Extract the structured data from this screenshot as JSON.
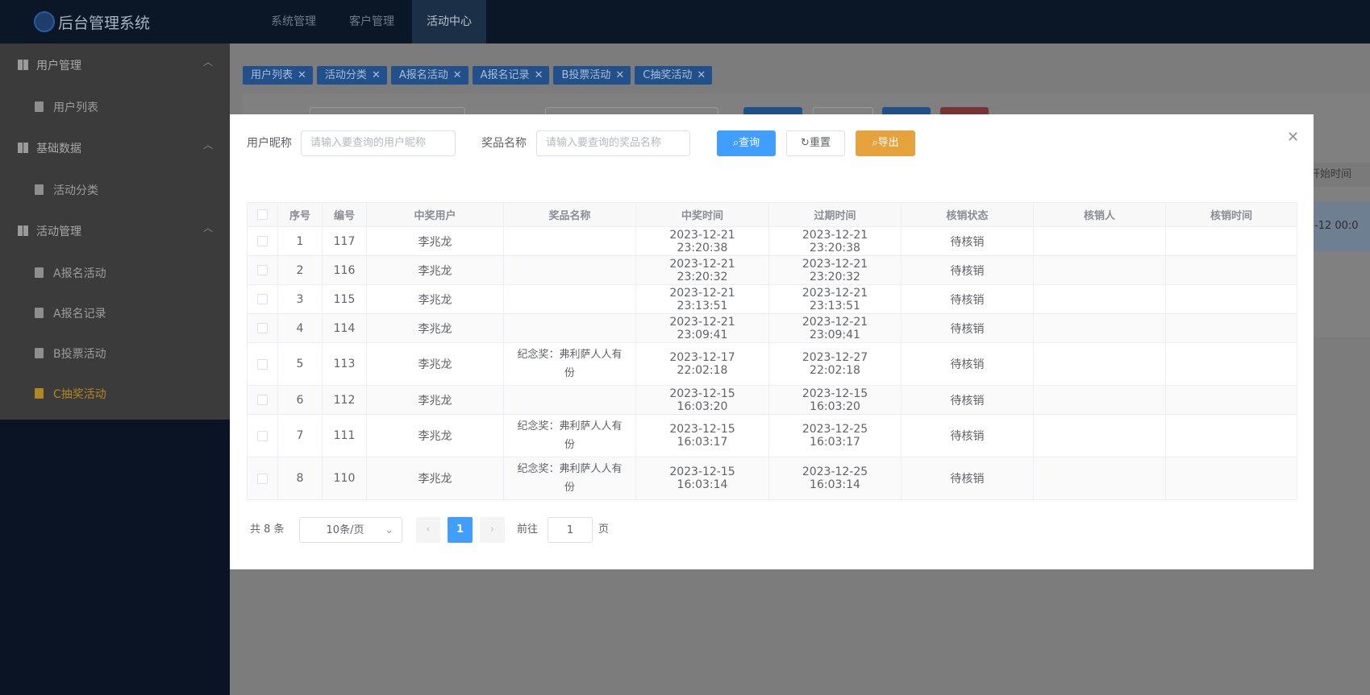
{
  "header": {
    "title": "后台管理系统",
    "nav": [
      "系统管理",
      "客户管理",
      "活动中心"
    ],
    "active_nav": 2
  },
  "sidebar": [
    {
      "label": "用户管理",
      "items": [
        "用户列表"
      ]
    },
    {
      "label": "基础数据",
      "items": [
        "活动分类"
      ]
    },
    {
      "label": "活动管理",
      "items": [
        "A报名活动",
        "A报名记录",
        "B投票活动",
        "C抽奖活动"
      ]
    }
  ],
  "active_menu": [
    2,
    3
  ],
  "tabs": [
    "用户列表",
    "活动分类",
    "A报名活动",
    "A报名记录",
    "B投票活动",
    "C抽奖活动"
  ],
  "background_table": {
    "header": "开始时间",
    "cell": "-12 00:0"
  },
  "dialog": {
    "filters": [
      {
        "label": "用户昵称",
        "placeholder": "请输入要查询的用户昵称"
      },
      {
        "label": "奖品名称",
        "placeholder": "请输入要查询的奖品名称"
      }
    ],
    "buttons": [
      "查询",
      "重置",
      "导出"
    ],
    "columns": [
      "序号",
      "编号",
      "中奖用户",
      "奖品名称",
      "中奖时间",
      "过期时间",
      "核销状态",
      "核销人",
      "核销时间"
    ],
    "rows": [
      [
        1,
        117,
        "李兆龙",
        null,
        "2023-12-21 23:20:38",
        "2023-12-21 23:20:38",
        "待核销",
        null,
        null
      ],
      [
        2,
        116,
        "李兆龙",
        null,
        "2023-12-21 23:20:32",
        "2023-12-21 23:20:32",
        "待核销",
        null,
        null
      ],
      [
        3,
        115,
        "李兆龙",
        null,
        "2023-12-21 23:13:51",
        "2023-12-21 23:13:51",
        "待核销",
        null,
        null
      ],
      [
        4,
        114,
        "李兆龙",
        null,
        "2023-12-21 23:09:41",
        "2023-12-21 23:09:41",
        "待核销",
        null,
        null
      ],
      [
        5,
        113,
        "李兆龙",
        "纪念奖：弗利萨人人有份",
        "2023-12-17 22:02:18",
        "2023-12-27 22:02:18",
        "待核销",
        null,
        null
      ],
      [
        6,
        112,
        "李兆龙",
        null,
        "2023-12-15 16:03:20",
        "2023-12-15 16:03:20",
        "待核销",
        null,
        null
      ],
      [
        7,
        111,
        "李兆龙",
        "纪念奖：弗利萨人人有份",
        "2023-12-15 16:03:17",
        "2023-12-25 16:03:17",
        "待核销",
        null,
        null
      ],
      [
        8,
        110,
        "李兆龙",
        "纪念奖：弗利萨人人有份",
        "2023-12-15 16:03:14",
        "2023-12-25 16:03:14",
        "待核销",
        null,
        null
      ]
    ],
    "pagination": {
      "total_label": "共 8 条",
      "page_size": "10条/页",
      "current_page": 1,
      "goto_label": "前往",
      "goto_value": 1,
      "page_unit": "页"
    }
  }
}
